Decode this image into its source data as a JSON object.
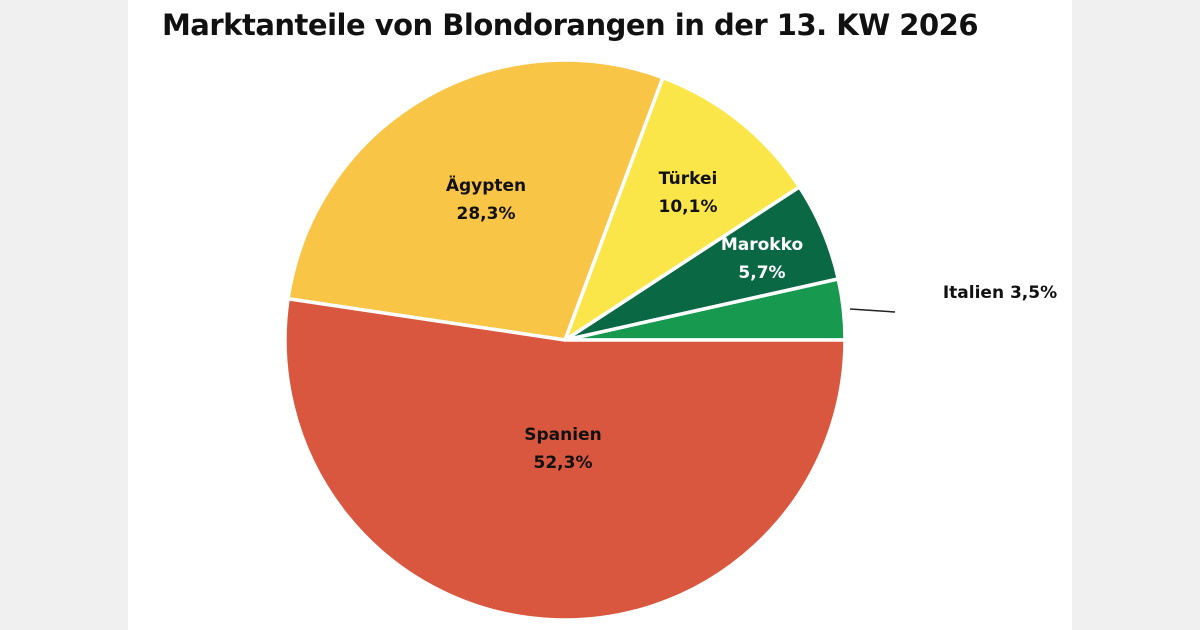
{
  "chart_data": {
    "type": "pie",
    "title": "Marktanteile von Blondorangen in der 13. KW 2026",
    "slices": [
      {
        "label": "Italien",
        "value": 3.5,
        "display": "3,5%",
        "color": "#17994f"
      },
      {
        "label": "Marokko",
        "value": 5.7,
        "display": "5,7%",
        "color": "#0a6845"
      },
      {
        "label": "Türkei",
        "value": 10.1,
        "display": "10,1%",
        "color": "#fbe64a"
      },
      {
        "label": "Ägypten",
        "value": 28.3,
        "display": "28,3%",
        "color": "#f9c546"
      },
      {
        "label": "Spanien",
        "value": 52.3,
        "display": "52,3%",
        "color": "#d9573e"
      }
    ],
    "start_angle": "3 o'clock, counterclockwise",
    "legend": "none"
  }
}
